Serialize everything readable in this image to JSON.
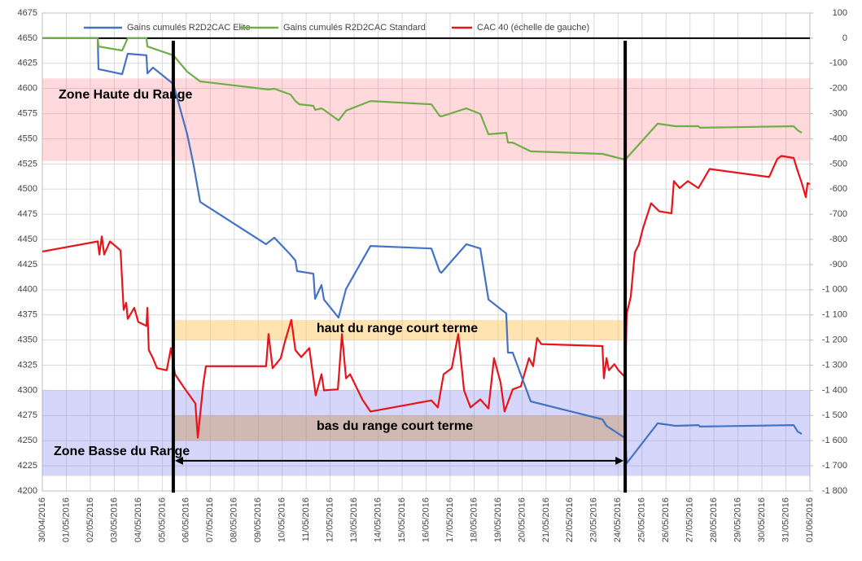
{
  "chart_data": {
    "type": "line",
    "legend": "top",
    "grid": true,
    "xlim": [
      0,
      32
    ],
    "xticks": [
      {
        "value": 0,
        "label": "30/04/2016"
      },
      {
        "value": 1,
        "label": "01/05/2016"
      },
      {
        "value": 2,
        "label": "02/05/2016"
      },
      {
        "value": 3,
        "label": "03/05/2016"
      },
      {
        "value": 4,
        "label": "04/05/2016"
      },
      {
        "value": 5,
        "label": "05/05/2016"
      },
      {
        "value": 6,
        "label": "06/05/2016"
      },
      {
        "value": 7,
        "label": "07/05/2016"
      },
      {
        "value": 8,
        "label": "08/05/2016"
      },
      {
        "value": 9,
        "label": "09/05/2016"
      },
      {
        "value": 10,
        "label": "10/05/2016"
      },
      {
        "value": 11,
        "label": "11/05/2016"
      },
      {
        "value": 12,
        "label": "12/05/2016"
      },
      {
        "value": 13,
        "label": "13/05/2016"
      },
      {
        "value": 14,
        "label": "14/05/2016"
      },
      {
        "value": 15,
        "label": "15/05/2016"
      },
      {
        "value": 16,
        "label": "16/05/2016"
      },
      {
        "value": 17,
        "label": "17/05/2016"
      },
      {
        "value": 18,
        "label": "18/05/2016"
      },
      {
        "value": 19,
        "label": "19/05/2016"
      },
      {
        "value": 20,
        "label": "20/05/2016"
      },
      {
        "value": 21,
        "label": "21/05/2016"
      },
      {
        "value": 22,
        "label": "22/05/2016"
      },
      {
        "value": 23,
        "label": "23/05/2016"
      },
      {
        "value": 24,
        "label": "24/05/2016"
      },
      {
        "value": 25,
        "label": "25/05/2016"
      },
      {
        "value": 26,
        "label": "26/05/2016"
      },
      {
        "value": 27,
        "label": "27/05/2016"
      },
      {
        "value": 28,
        "label": "28/05/2016"
      },
      {
        "value": 29,
        "label": "29/05/2016"
      },
      {
        "value": 30,
        "label": "30/05/2016"
      },
      {
        "value": 31,
        "label": "31/05/2016"
      },
      {
        "value": 32,
        "label": "01/06/2016"
      }
    ],
    "ylim": [
      4200,
      4675
    ],
    "yticks": [
      4200,
      4225,
      4250,
      4275,
      4300,
      4325,
      4350,
      4375,
      4400,
      4425,
      4450,
      4475,
      4500,
      4525,
      4550,
      4575,
      4600,
      4625,
      4650,
      4675
    ],
    "y2lim": [
      -1800,
      100
    ],
    "y2ticks": [
      {
        "value": -1800,
        "label": "-1 800"
      },
      {
        "value": -1700,
        "label": "-1 700"
      },
      {
        "value": -1600,
        "label": "-1 600"
      },
      {
        "value": -1500,
        "label": "-1 500"
      },
      {
        "value": -1400,
        "label": "-1 400"
      },
      {
        "value": -1300,
        "label": "-1 300"
      },
      {
        "value": -1200,
        "label": "-1 200"
      },
      {
        "value": -1100,
        "label": "-1 100"
      },
      {
        "value": -1000,
        "label": "-1 000"
      },
      -900,
      -800,
      -700,
      -600,
      -500,
      -400,
      -300,
      -200,
      -100,
      0,
      100
    ],
    "bands": [
      {
        "label": "Zone Haute du Range",
        "ymin": 4528,
        "ymax": 4610,
        "color": "rgba(255,120,130,0.28)"
      },
      {
        "label": "Zone Basse du Range",
        "ymin": 4215,
        "ymax": 4300,
        "color": "rgba(120,120,240,0.3)"
      },
      {
        "label": "haut du range court terme",
        "ymin": 4350,
        "ymax": 4370,
        "x": [
          5.46,
          24.3
        ],
        "color": "rgba(255,200,100,0.5)"
      },
      {
        "label": "bas du range court terme",
        "ymin": 4250,
        "ymax": 4275,
        "x": [
          5.46,
          24.3
        ],
        "color": "rgba(200,150,90,0.45)"
      }
    ],
    "vlines": [
      5.46,
      24.3
    ],
    "arrow": {
      "x": [
        5.46,
        24.3
      ],
      "y": 4230
    },
    "series": [
      {
        "name": "Gains cumulés R2D2CAC Elite",
        "color": "#4472c4",
        "axis": "y2",
        "x": [
          0,
          2.31,
          2.34,
          3.33,
          3.56,
          4.34,
          4.38,
          4.61,
          5.46,
          6.04,
          6.31,
          6.58,
          9.33,
          9.67,
          10.35,
          10.55,
          10.62,
          11.3,
          11.37,
          11.64,
          11.74,
          12.35,
          12.66,
          13.68,
          16.22,
          16.56,
          16.63,
          17.68,
          18.26,
          18.6,
          19.34,
          19.41,
          19.61,
          20.36,
          23.35,
          23.52,
          24.3,
          24.36,
          25.65,
          26.4,
          27.35,
          27.42,
          31.32,
          31.49,
          31.66
        ],
        "values": [
          0,
          0,
          -123,
          -143,
          -62,
          -68,
          -140,
          -117,
          -182,
          -382,
          -505,
          -651,
          -819,
          -793,
          -861,
          -884,
          -926,
          -936,
          -1036,
          -981,
          -1039,
          -1111,
          -997,
          -826,
          -836,
          -926,
          -933,
          -819,
          -836,
          -1039,
          -1094,
          -1250,
          -1250,
          -1444,
          -1515,
          -1541,
          -1590,
          -1690,
          -1531,
          -1541,
          -1538,
          -1544,
          -1538,
          -1564,
          -1573
        ]
      },
      {
        "name": "Gains cumulés R2D2CAC Standard",
        "color": "#70ad47",
        "axis": "y2",
        "x": [
          0,
          2.31,
          2.34,
          3.33,
          3.56,
          4.34,
          4.38,
          5.46,
          6.04,
          6.58,
          9.43,
          9.67,
          10.35,
          10.55,
          10.72,
          11.3,
          11.37,
          11.64,
          11.74,
          12.35,
          12.66,
          13.68,
          16.22,
          16.56,
          16.63,
          17.68,
          18.26,
          18.6,
          19.34,
          19.41,
          19.61,
          20.36,
          23.35,
          24.3,
          25.65,
          26.4,
          27.35,
          27.42,
          31.32,
          31.49,
          31.66
        ],
        "values": [
          0,
          0,
          -33,
          -49,
          0,
          0,
          -33,
          -68,
          -133,
          -172,
          -204,
          -201,
          -224,
          -250,
          -263,
          -269,
          -285,
          -279,
          -285,
          -327,
          -288,
          -250,
          -263,
          -308,
          -311,
          -279,
          -301,
          -382,
          -376,
          -415,
          -415,
          -450,
          -460,
          -483,
          -340,
          -350,
          -350,
          -356,
          -350,
          -366,
          -376
        ]
      },
      {
        "name": "CAC 40 (échelle de gauche)",
        "color": "#e8141c",
        "x": [
          0,
          2.31,
          2.38,
          2.48,
          2.58,
          2.82,
          3.26,
          3.39,
          3.5,
          3.56,
          3.83,
          4.0,
          4.34,
          4.38,
          4.44,
          4.61,
          4.78,
          5.19,
          5.36,
          5.53,
          5.87,
          6.38,
          6.48,
          6.72,
          6.82,
          9.33,
          9.43,
          9.6,
          9.94,
          10.11,
          10.38,
          10.55,
          10.79,
          11.13,
          11.4,
          11.64,
          11.74,
          12.32,
          12.49,
          12.66,
          12.83,
          13.34,
          13.68,
          16.22,
          16.49,
          16.73,
          17.07,
          17.34,
          17.58,
          17.85,
          18.26,
          18.6,
          18.83,
          19.1,
          19.27,
          19.61,
          19.95,
          20.29,
          20.46,
          20.63,
          20.8,
          23.35,
          23.41,
          23.52,
          23.62,
          23.85,
          24.02,
          24.3,
          24.36,
          24.53,
          24.7,
          24.87,
          25.04,
          25.38,
          25.72,
          26.23,
          26.33,
          26.57,
          26.91,
          27.35,
          27.82,
          30.3,
          30.64,
          30.81,
          31.32,
          31.49,
          31.66,
          31.83,
          31.9,
          32
        ],
        "values": [
          4438,
          4448,
          4435,
          4453,
          4435,
          4448,
          4439,
          4380,
          4387,
          4371,
          4382,
          4368,
          4364,
          4382,
          4340,
          4332,
          4322,
          4320,
          4342,
          4316,
          4304,
          4287,
          4253,
          4308,
          4324,
          4324,
          4356,
          4322,
          4332,
          4348,
          4370,
          4340,
          4333,
          4342,
          4295,
          4316,
          4300,
          4301,
          4356,
          4312,
          4316,
          4291,
          4279,
          4290,
          4283,
          4316,
          4322,
          4356,
          4300,
          4283,
          4291,
          4282,
          4332,
          4308,
          4279,
          4301,
          4304,
          4332,
          4324,
          4352,
          4346,
          4344,
          4312,
          4332,
          4320,
          4326,
          4320,
          4313,
          4376,
          4393,
          4437,
          4445,
          4461,
          4486,
          4478,
          4476,
          4508,
          4501,
          4508,
          4501,
          4520,
          4512,
          4530,
          4533,
          4531,
          4518,
          4506,
          4492,
          4506,
          4505
        ]
      }
    ]
  }
}
